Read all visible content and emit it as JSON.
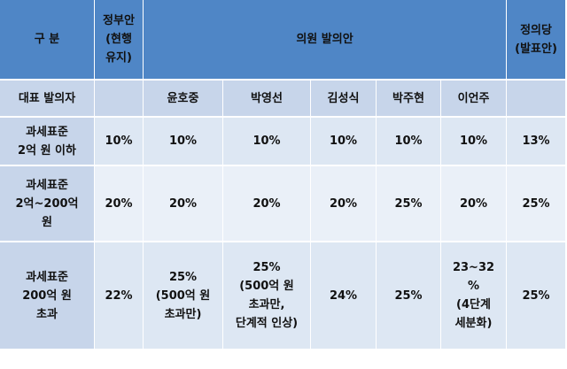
{
  "header": {
    "gubun": "구 분",
    "government_line1": "정부안",
    "government_line2": "(현행",
    "government_line3": "유지)",
    "assembly": "의원 발의안",
    "justice_line1": "정의당",
    "justice_line2": "(발표안)"
  },
  "proposer_row": {
    "label": "대표 발의자",
    "government": "",
    "names": [
      "윤호중",
      "박영선",
      "김성식",
      "박주현",
      "이언주"
    ],
    "justice": ""
  },
  "rows": [
    {
      "label_lines": [
        "과세표준",
        "2억 원 이하"
      ],
      "government": "10%",
      "values": [
        "10%",
        "10%",
        "10%",
        "10%",
        "10%"
      ],
      "justice": "13%"
    },
    {
      "label_lines": [
        "과세표준",
        "2억~200억",
        "원"
      ],
      "government": "20%",
      "values": [
        "20%",
        "20%",
        "20%",
        "25%",
        "20%"
      ],
      "justice": "25%"
    },
    {
      "label_lines": [
        "과세표준",
        "200억 원",
        "초과"
      ],
      "government": "22%",
      "values_lines": [
        [
          "25%",
          "(500억 원",
          "초과만)"
        ],
        [
          "25%",
          "(500억 원",
          "초과만,",
          "단계적 인상)"
        ],
        [
          "24%"
        ],
        [
          "25%"
        ],
        [
          "23~32",
          "%",
          "(4단계",
          "세분화)"
        ]
      ],
      "justice": "25%"
    }
  ]
}
